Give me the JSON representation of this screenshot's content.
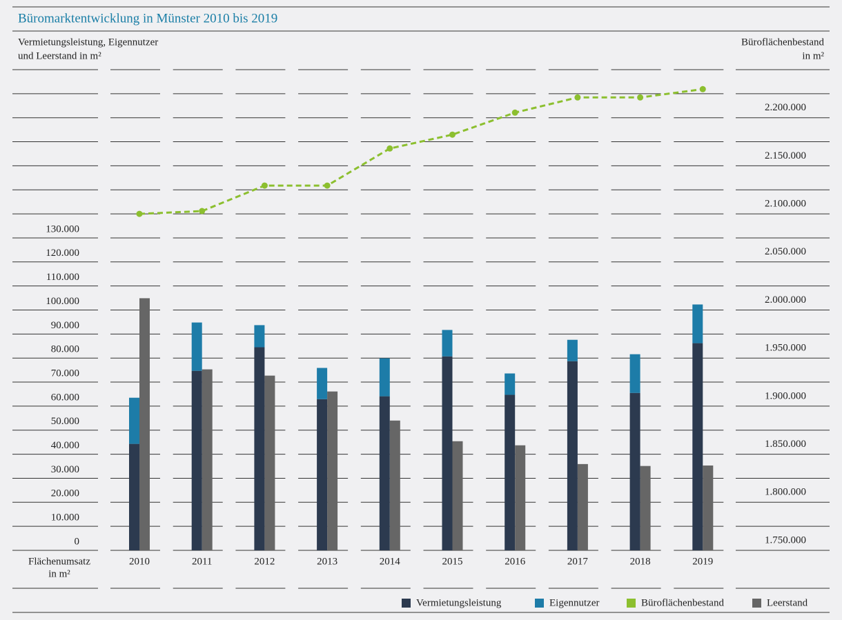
{
  "chart_data": {
    "type": "bar",
    "title": "Büromarktentwicklung in Münster 2010 bis 2019",
    "y_label": [
      "Vermietungsleistung, Eigennutzer",
      "und Leerstand in m²"
    ],
    "y2_label": [
      "Büroflächenbestand",
      "in m²"
    ],
    "x_label": [
      "Flächenumsatz",
      "in m²"
    ],
    "categories": [
      "2010",
      "2011",
      "2012",
      "2013",
      "2014",
      "2015",
      "2016",
      "2017",
      "2018",
      "2019"
    ],
    "series": [
      {
        "name": "Vermietungsleistung",
        "color": "#2c3a4f",
        "stack": "a",
        "values": [
          44300,
          74700,
          84500,
          62900,
          64100,
          80700,
          64700,
          78700,
          65500,
          86200
        ]
      },
      {
        "name": "Eigennutzer",
        "color": "#1d7ca8",
        "stack": "a",
        "values": [
          19200,
          20100,
          9200,
          13000,
          15800,
          11000,
          8900,
          8900,
          16100,
          16100
        ]
      },
      {
        "name": "Büroflächenbestand",
        "color": "#8cbf2f",
        "axis": "y2",
        "line_style": "dashed",
        "values": [
          2100000,
          2102900,
          2129400,
          2129400,
          2168000,
          2182400,
          2205300,
          2221100,
          2221100,
          2229700
        ]
      },
      {
        "name": "Leerstand",
        "color": "#666666",
        "stack": "b",
        "values": [
          104900,
          75300,
          72700,
          66100,
          54000,
          45400,
          43700,
          35900,
          35100,
          35300
        ]
      }
    ],
    "ylim": [
      0,
      200000
    ],
    "yticks": [
      0,
      {
        "value": 10000,
        "label": "10.000"
      },
      {
        "value": 20000,
        "label": "20.000"
      },
      {
        "value": 30000,
        "label": "30.000"
      },
      {
        "value": 40000,
        "label": "40.000"
      },
      {
        "value": 50000,
        "label": "50.000"
      },
      {
        "value": 60000,
        "label": "60.000"
      },
      {
        "value": 70000,
        "label": "70.000"
      },
      {
        "value": 80000,
        "label": "80.000"
      },
      {
        "value": 90000,
        "label": "90.000"
      },
      {
        "value": 100000,
        "label": "100.000"
      },
      {
        "value": 110000,
        "label": "110.000"
      },
      {
        "value": 120000,
        "label": "120.000"
      },
      {
        "value": 130000,
        "label": "130.000"
      }
    ],
    "y2lim": [
      1750000,
      2250000
    ],
    "y2ticks": [
      {
        "value": 1750000,
        "label": "1.750.000"
      },
      {
        "value": 1800000,
        "label": "1.800.000"
      },
      {
        "value": 1850000,
        "label": "1.850.000"
      },
      {
        "value": 1900000,
        "label": "1.900.000"
      },
      {
        "value": 1950000,
        "label": "1.950.000"
      },
      {
        "value": 2000000,
        "label": "2.000.000"
      },
      {
        "value": 2050000,
        "label": "2.050.000"
      },
      {
        "value": 2100000,
        "label": "2.100.000"
      },
      {
        "value": 2150000,
        "label": "2.150.000"
      },
      {
        "value": 2200000,
        "label": "2.200.000"
      }
    ],
    "grid": true,
    "legend": "bottom-right"
  }
}
